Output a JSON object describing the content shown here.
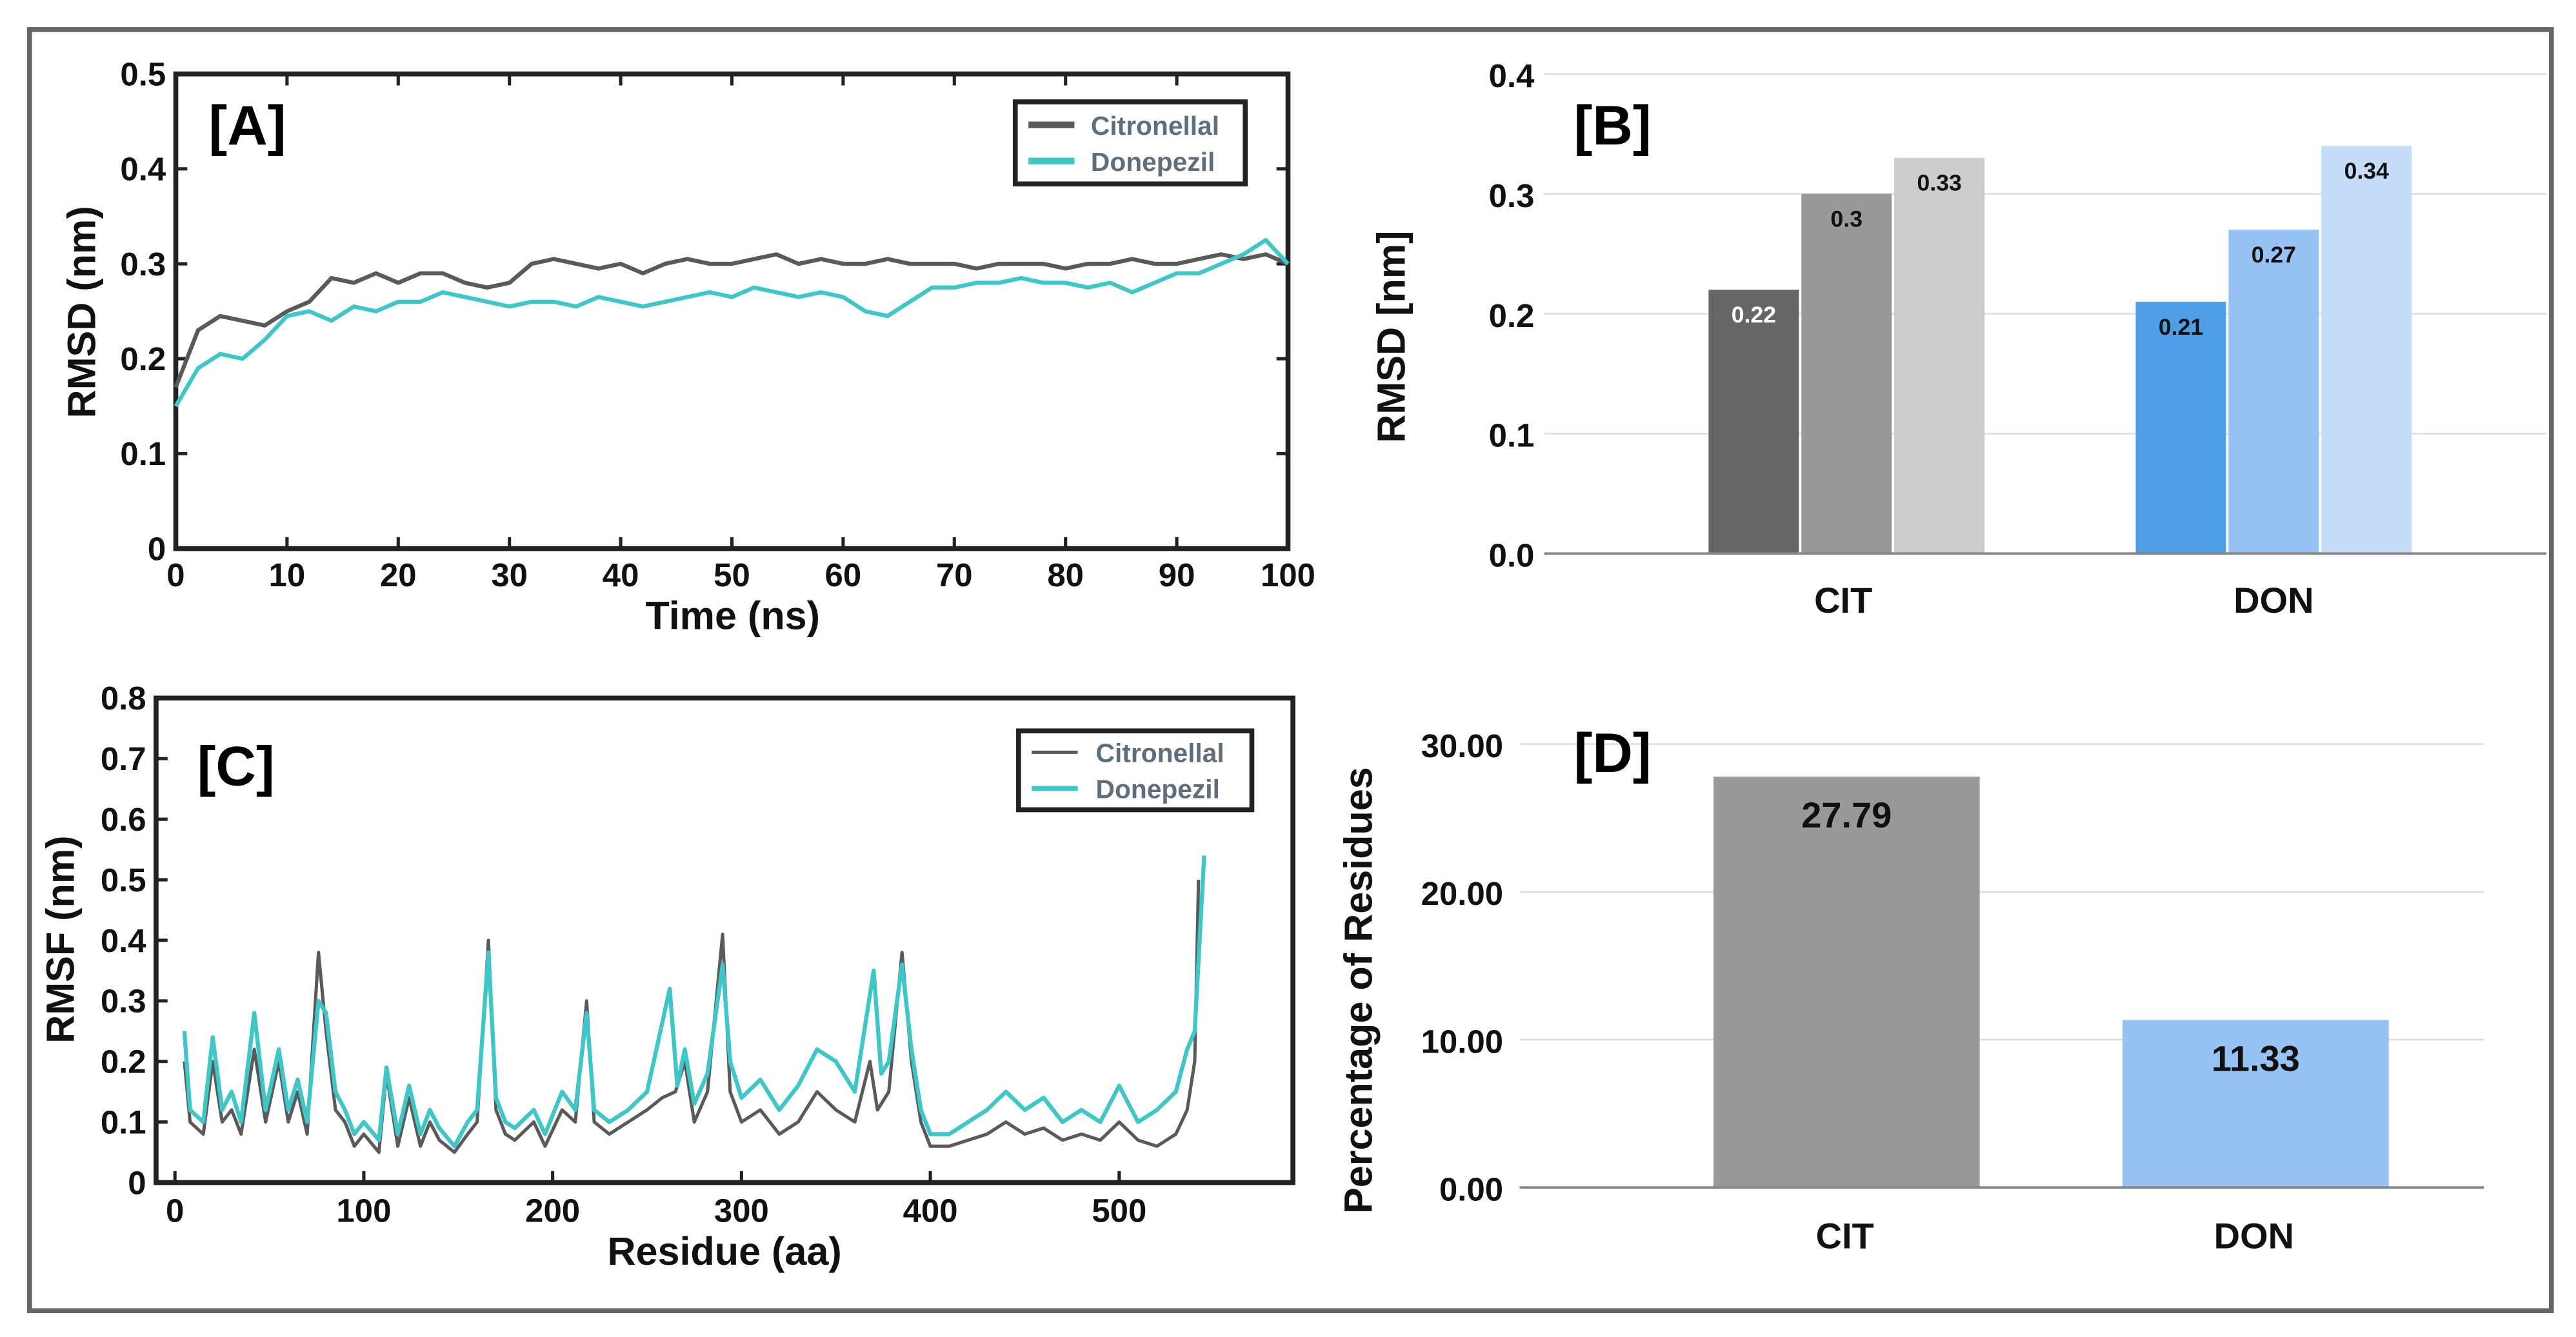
{
  "colors": {
    "citronellal": "#5a5a5a",
    "donepezil": "#3fc6c6",
    "frame": "#666666"
  },
  "chart_data": [
    {
      "type": "line",
      "panel": "[A]",
      "xlabel": "Time (ns)",
      "ylabel": "RMSD (nm)",
      "xlim": [
        0,
        100
      ],
      "ylim": [
        0,
        0.5
      ],
      "xticks": [
        "0",
        "10",
        "20",
        "30",
        "40",
        "50",
        "60",
        "70",
        "80",
        "90",
        "100"
      ],
      "yticks": [
        "0",
        "0.1",
        "0.2",
        "0.3",
        "0.4",
        "0.5"
      ],
      "legend_position": "top-right",
      "series": [
        {
          "name": "Citronellal",
          "color": "#5a5a5a",
          "values": [
            0.17,
            0.23,
            0.245,
            0.24,
            0.235,
            0.25,
            0.26,
            0.285,
            0.28,
            0.29,
            0.28,
            0.29,
            0.29,
            0.28,
            0.275,
            0.28,
            0.3,
            0.305,
            0.3,
            0.295,
            0.3,
            0.29,
            0.3,
            0.305,
            0.3,
            0.3,
            0.305,
            0.31,
            0.3,
            0.305,
            0.3,
            0.3,
            0.305,
            0.3,
            0.3,
            0.3,
            0.295,
            0.3,
            0.3,
            0.3,
            0.295,
            0.3,
            0.3,
            0.305,
            0.3,
            0.3,
            0.305,
            0.31,
            0.305,
            0.31,
            0.3
          ]
        },
        {
          "name": "Donepezil",
          "color": "#3fc6c6",
          "values": [
            0.15,
            0.19,
            0.205,
            0.2,
            0.22,
            0.245,
            0.25,
            0.24,
            0.255,
            0.25,
            0.26,
            0.26,
            0.27,
            0.265,
            0.26,
            0.255,
            0.26,
            0.26,
            0.255,
            0.265,
            0.26,
            0.255,
            0.26,
            0.265,
            0.27,
            0.265,
            0.275,
            0.27,
            0.265,
            0.27,
            0.265,
            0.25,
            0.245,
            0.26,
            0.275,
            0.275,
            0.28,
            0.28,
            0.285,
            0.28,
            0.28,
            0.275,
            0.28,
            0.27,
            0.28,
            0.29,
            0.29,
            0.3,
            0.31,
            0.325,
            0.3
          ]
        }
      ]
    },
    {
      "type": "bar",
      "panel": "[B]",
      "ylabel": "RMSD [nm]",
      "ylim": [
        0,
        0.4
      ],
      "yticks": [
        "0.0",
        "0.1",
        "0.2",
        "0.3",
        "0.4"
      ],
      "grid": true,
      "categories": [
        "CIT",
        "DON"
      ],
      "groups": [
        {
          "category": "CIT",
          "values": [
            0.22,
            0.3,
            0.33
          ],
          "labels": [
            "0.22",
            "0.3",
            "0.33"
          ],
          "colors": [
            "#666666",
            "#999999",
            "#cccccc"
          ],
          "label_colors": [
            "#ffffff",
            "#111111",
            "#111111"
          ]
        },
        {
          "category": "DON",
          "values": [
            0.21,
            0.27,
            0.34
          ],
          "labels": [
            "0.21",
            "0.27",
            "0.34"
          ],
          "colors": [
            "#4f9fe8",
            "#97c3f4",
            "#c5ddf8"
          ],
          "label_colors": [
            "#111111",
            "#111111",
            "#111111"
          ]
        }
      ]
    },
    {
      "type": "line",
      "panel": "[C]",
      "xlabel": "Residue (aa)",
      "ylabel": "RMSF (nm)",
      "xlim": [
        -10,
        592
      ],
      "ylim": [
        0,
        0.8
      ],
      "xticks": [
        "0",
        "100",
        "200",
        "300",
        "400",
        "500"
      ],
      "yticks": [
        "0",
        "0.1",
        "0.2",
        "0.3",
        "0.4",
        "0.5",
        "0.6",
        "0.7",
        "0.8"
      ],
      "legend_position": "top-right",
      "series": [
        {
          "name": "Citronellal",
          "color": "#5a5a5a",
          "points": [
            [
              5,
              0.2
            ],
            [
              8,
              0.1
            ],
            [
              15,
              0.08
            ],
            [
              20,
              0.2
            ],
            [
              25,
              0.1
            ],
            [
              30,
              0.12
            ],
            [
              35,
              0.08
            ],
            [
              42,
              0.22
            ],
            [
              48,
              0.1
            ],
            [
              55,
              0.2
            ],
            [
              60,
              0.1
            ],
            [
              65,
              0.15
            ],
            [
              70,
              0.08
            ],
            [
              76,
              0.38
            ],
            [
              80,
              0.25
            ],
            [
              85,
              0.12
            ],
            [
              90,
              0.1
            ],
            [
              95,
              0.06
            ],
            [
              100,
              0.08
            ],
            [
              108,
              0.05
            ],
            [
              112,
              0.18
            ],
            [
              118,
              0.06
            ],
            [
              124,
              0.14
            ],
            [
              130,
              0.06
            ],
            [
              135,
              0.1
            ],
            [
              140,
              0.07
            ],
            [
              148,
              0.05
            ],
            [
              155,
              0.08
            ],
            [
              160,
              0.1
            ],
            [
              166,
              0.4
            ],
            [
              170,
              0.12
            ],
            [
              175,
              0.08
            ],
            [
              180,
              0.07
            ],
            [
              190,
              0.1
            ],
            [
              196,
              0.06
            ],
            [
              205,
              0.12
            ],
            [
              212,
              0.1
            ],
            [
              218,
              0.3
            ],
            [
              222,
              0.1
            ],
            [
              230,
              0.08
            ],
            [
              240,
              0.1
            ],
            [
              250,
              0.12
            ],
            [
              258,
              0.14
            ],
            [
              265,
              0.15
            ],
            [
              270,
              0.2
            ],
            [
              275,
              0.1
            ],
            [
              282,
              0.15
            ],
            [
              290,
              0.41
            ],
            [
              294,
              0.15
            ],
            [
              300,
              0.1
            ],
            [
              310,
              0.12
            ],
            [
              320,
              0.08
            ],
            [
              330,
              0.1
            ],
            [
              340,
              0.15
            ],
            [
              350,
              0.12
            ],
            [
              360,
              0.1
            ],
            [
              368,
              0.2
            ],
            [
              372,
              0.12
            ],
            [
              378,
              0.15
            ],
            [
              385,
              0.38
            ],
            [
              390,
              0.2
            ],
            [
              395,
              0.1
            ],
            [
              400,
              0.06
            ],
            [
              410,
              0.06
            ],
            [
              420,
              0.07
            ],
            [
              430,
              0.08
            ],
            [
              440,
              0.1
            ],
            [
              450,
              0.08
            ],
            [
              460,
              0.09
            ],
            [
              470,
              0.07
            ],
            [
              480,
              0.08
            ],
            [
              490,
              0.07
            ],
            [
              500,
              0.1
            ],
            [
              510,
              0.07
            ],
            [
              520,
              0.06
            ],
            [
              530,
              0.08
            ],
            [
              536,
              0.12
            ],
            [
              540,
              0.2
            ],
            [
              542,
              0.5
            ]
          ]
        },
        {
          "name": "Donepezil",
          "color": "#3fc6c6",
          "points": [
            [
              5,
              0.25
            ],
            [
              8,
              0.12
            ],
            [
              15,
              0.1
            ],
            [
              20,
              0.24
            ],
            [
              25,
              0.12
            ],
            [
              30,
              0.15
            ],
            [
              35,
              0.1
            ],
            [
              42,
              0.28
            ],
            [
              48,
              0.12
            ],
            [
              55,
              0.22
            ],
            [
              60,
              0.12
            ],
            [
              65,
              0.17
            ],
            [
              70,
              0.1
            ],
            [
              76,
              0.3
            ],
            [
              80,
              0.28
            ],
            [
              85,
              0.15
            ],
            [
              90,
              0.12
            ],
            [
              95,
              0.08
            ],
            [
              100,
              0.1
            ],
            [
              108,
              0.07
            ],
            [
              112,
              0.19
            ],
            [
              118,
              0.08
            ],
            [
              124,
              0.16
            ],
            [
              130,
              0.08
            ],
            [
              135,
              0.12
            ],
            [
              140,
              0.09
            ],
            [
              148,
              0.06
            ],
            [
              155,
              0.1
            ],
            [
              160,
              0.12
            ],
            [
              166,
              0.38
            ],
            [
              170,
              0.14
            ],
            [
              175,
              0.1
            ],
            [
              180,
              0.09
            ],
            [
              190,
              0.12
            ],
            [
              196,
              0.08
            ],
            [
              205,
              0.15
            ],
            [
              212,
              0.12
            ],
            [
              218,
              0.28
            ],
            [
              222,
              0.12
            ],
            [
              230,
              0.1
            ],
            [
              240,
              0.12
            ],
            [
              250,
              0.15
            ],
            [
              262,
              0.32
            ],
            [
              266,
              0.16
            ],
            [
              270,
              0.22
            ],
            [
              275,
              0.13
            ],
            [
              282,
              0.18
            ],
            [
              290,
              0.36
            ],
            [
              294,
              0.2
            ],
            [
              300,
              0.14
            ],
            [
              310,
              0.17
            ],
            [
              320,
              0.12
            ],
            [
              330,
              0.16
            ],
            [
              340,
              0.22
            ],
            [
              350,
              0.2
            ],
            [
              360,
              0.15
            ],
            [
              370,
              0.35
            ],
            [
              374,
              0.18
            ],
            [
              378,
              0.2
            ],
            [
              385,
              0.36
            ],
            [
              390,
              0.22
            ],
            [
              395,
              0.12
            ],
            [
              400,
              0.08
            ],
            [
              410,
              0.08
            ],
            [
              420,
              0.1
            ],
            [
              430,
              0.12
            ],
            [
              440,
              0.15
            ],
            [
              450,
              0.12
            ],
            [
              460,
              0.14
            ],
            [
              470,
              0.1
            ],
            [
              480,
              0.12
            ],
            [
              490,
              0.1
            ],
            [
              500,
              0.16
            ],
            [
              510,
              0.1
            ],
            [
              520,
              0.12
            ],
            [
              530,
              0.15
            ],
            [
              536,
              0.22
            ],
            [
              540,
              0.25
            ],
            [
              545,
              0.54
            ]
          ]
        }
      ]
    },
    {
      "type": "bar",
      "panel": "[D]",
      "ylabel": "Percentage of Residues",
      "ylim": [
        0,
        30
      ],
      "yticks": [
        "0.00",
        "10.00",
        "20.00",
        "30.00"
      ],
      "grid": true,
      "categories": [
        "CIT",
        "DON"
      ],
      "values": [
        27.79,
        11.33
      ],
      "labels": [
        "27.79",
        "11.33"
      ],
      "colors": [
        "#999999",
        "#97c3f4"
      ]
    }
  ]
}
